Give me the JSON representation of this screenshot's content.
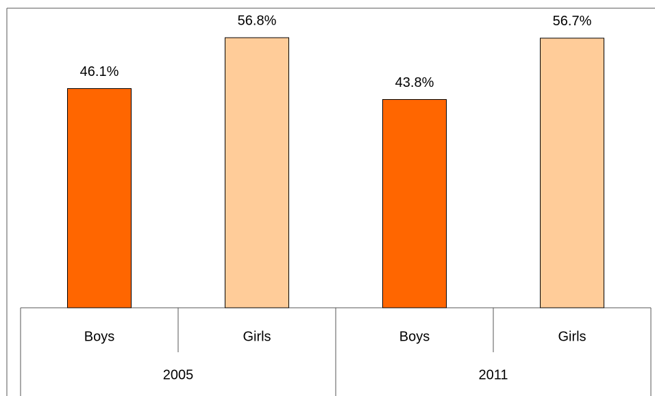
{
  "chart_data": {
    "type": "bar",
    "categories": [
      "Boys",
      "Girls",
      "Boys",
      "Girls"
    ],
    "groups": [
      "2005",
      "2011"
    ],
    "values": [
      46.1,
      56.8,
      43.8,
      56.7
    ],
    "value_labels": [
      "46.1%",
      "56.8%",
      "43.8%",
      "56.7%"
    ],
    "colors": [
      "#ff6600",
      "#ffcc99",
      "#ff6600",
      "#ffcc99"
    ],
    "ylim": [
      0,
      63
    ]
  }
}
